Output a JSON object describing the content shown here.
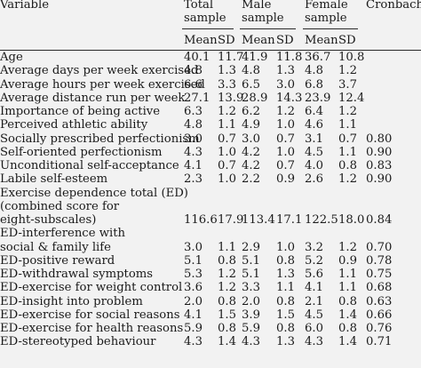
{
  "header": {
    "variable": "Variable",
    "total_line1": "Total",
    "total_line2": "sample",
    "male_line1": "Male",
    "male_line2": "sample",
    "female_line1": "Female",
    "female_line2": "sample",
    "cronbach": "Cronbach α",
    "mean": "Mean",
    "sd": "SD"
  },
  "rows": [
    {
      "variable": [
        "Age"
      ],
      "tm": "40.1",
      "tsd": "11.7",
      "mm": "41.9",
      "msd": "11.8",
      "fm": "36.7",
      "fsd": "10.8",
      "alpha": ""
    },
    {
      "variable": [
        "Average days per week exercised"
      ],
      "tm": "4.8",
      "tsd": "1.3",
      "mm": "4.8",
      "msd": "1.3",
      "fm": "4.8",
      "fsd": "1.2",
      "alpha": ""
    },
    {
      "variable": [
        "Average hours per week exercised"
      ],
      "tm": "6.6",
      "tsd": "3.3",
      "mm": "6.5",
      "msd": "3.0",
      "fm": "6.8",
      "fsd": "3.7",
      "alpha": ""
    },
    {
      "variable": [
        "Average distance run per week"
      ],
      "tm": "27.1",
      "tsd": "13.9",
      "mm": "28.9",
      "msd": "14.3",
      "fm": "23.9",
      "fsd": "12.4",
      "alpha": ""
    },
    {
      "variable": [
        "Importance of being active"
      ],
      "tm": "6.3",
      "tsd": "1.2",
      "mm": "6.2",
      "msd": "1.2",
      "fm": "6.4",
      "fsd": "1.2",
      "alpha": ""
    },
    {
      "variable": [
        "Perceived athletic ability"
      ],
      "tm": "4.8",
      "tsd": "1.1",
      "mm": "4.9",
      "msd": "1.0",
      "fm": "4.6",
      "fsd": "1.1",
      "alpha": ""
    },
    {
      "variable": [
        "Socially prescribed perfectionism"
      ],
      "tm": "3.0",
      "tsd": "0.7",
      "mm": "3.0",
      "msd": "0.7",
      "fm": "3.1",
      "fsd": "0.7",
      "alpha": "0.80"
    },
    {
      "variable": [
        "Self-oriented perfectionism"
      ],
      "tm": "4.3",
      "tsd": "1.0",
      "mm": "4.2",
      "msd": "1.0",
      "fm": "4.5",
      "fsd": "1.1",
      "alpha": "0.90"
    },
    {
      "variable": [
        "Unconditional self-acceptance"
      ],
      "tm": "4.1",
      "tsd": "0.7",
      "mm": "4.2",
      "msd": "0.7",
      "fm": "4.0",
      "fsd": "0.8",
      "alpha": "0.83"
    },
    {
      "variable": [
        "Labile self-esteem"
      ],
      "tm": "2.3",
      "tsd": "1.0",
      "mm": "2.2",
      "msd": "0.9",
      "fm": "2.6",
      "fsd": "1.2",
      "alpha": "0.90"
    },
    {
      "variable": [
        "Exercise dependence total (ED)",
        "(combined score for",
        "eight-subscales)"
      ],
      "tm": "116.6",
      "tsd": "17.9",
      "mm": "113.4",
      "msd": "17.1",
      "fm": "122.5",
      "fsd": "18.0",
      "alpha": "0.84"
    },
    {
      "variable": [
        "ED-interference with",
        "social & family life"
      ],
      "tm": "3.0",
      "tsd": "1.1",
      "mm": "2.9",
      "msd": "1.0",
      "fm": "3.2",
      "fsd": "1.2",
      "alpha": "0.70"
    },
    {
      "variable": [
        "ED-positive reward"
      ],
      "tm": "5.1",
      "tsd": "0.8",
      "mm": "5.1",
      "msd": "0.8",
      "fm": "5.2",
      "fsd": "0.9",
      "alpha": "0.78"
    },
    {
      "variable": [
        "ED-withdrawal symptoms"
      ],
      "tm": "5.3",
      "tsd": "1.2",
      "mm": "5.1",
      "msd": "1.3",
      "fm": "5.6",
      "fsd": "1.1",
      "alpha": "0.75"
    },
    {
      "variable": [
        "ED-exercise for weight control"
      ],
      "tm": "3.6",
      "tsd": "1.2",
      "mm": "3.3",
      "msd": "1.1",
      "fm": "4.1",
      "fsd": "1.1",
      "alpha": "0.68"
    },
    {
      "variable": [
        "ED-insight into problem"
      ],
      "tm": "2.0",
      "tsd": "0.8",
      "mm": "2.0",
      "msd": "0.8",
      "fm": "2.1",
      "fsd": "0.8",
      "alpha": "0.63"
    },
    {
      "variable": [
        "ED-exercise for social reasons"
      ],
      "tm": "4.1",
      "tsd": "1.5",
      "mm": "3.9",
      "msd": "1.5",
      "fm": "4.5",
      "fsd": "1.4",
      "alpha": "0.66"
    },
    {
      "variable": [
        "ED-exercise for health reasons"
      ],
      "tm": "5.9",
      "tsd": "0.8",
      "mm": "5.9",
      "msd": "0.8",
      "fm": "6.0",
      "fsd": "0.8",
      "alpha": "0.76"
    },
    {
      "variable": [
        "ED-stereotyped behaviour"
      ],
      "tm": "4.3",
      "tsd": "1.4",
      "mm": "4.3",
      "msd": "1.3",
      "fm": "4.3",
      "fsd": "1.4",
      "alpha": "0.71"
    }
  ]
}
